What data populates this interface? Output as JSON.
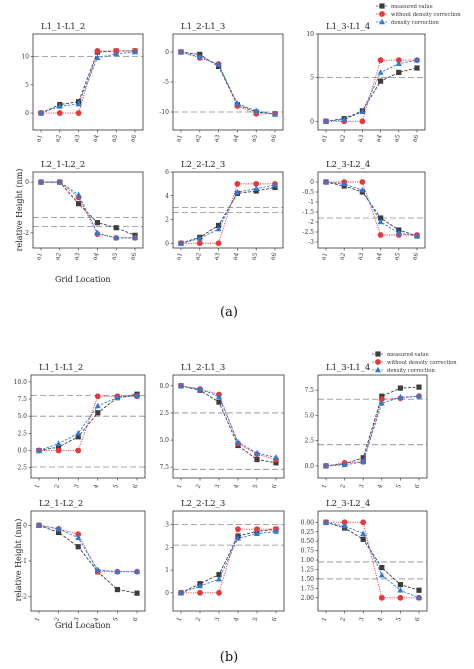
{
  "series_names": [
    "measured value",
    "without density correction",
    "density correction"
  ],
  "colors": {
    "measured": "#3d3d3d",
    "without": "#e8383d",
    "correction": "#2e7bd6",
    "reference": "#8a8a8a"
  },
  "markers": {
    "measured": "square",
    "without": "circle",
    "correction": "triangle"
  },
  "subfigure_labels": [
    "(a)",
    "(b)"
  ],
  "chart_data": [
    {
      "subfigure": "(a)",
      "type": "line",
      "ylabel": "relative Height (nm)",
      "xlabel": "Grid Location",
      "xticklabels": [
        "a1",
        "a2",
        "a3",
        "a4",
        "a5",
        "a6"
      ],
      "legend_placement": "top-right",
      "panels": [
        {
          "title": "L1_1-L1_2",
          "ylim": [
            -3,
            14
          ],
          "yticks": [
            0,
            5,
            10
          ],
          "ref_lines": [
            10
          ],
          "series": [
            {
              "name": "measured value",
              "values": [
                0,
                1.5,
                2,
                10.8,
                11,
                11
              ]
            },
            {
              "name": "without density correction",
              "values": [
                0,
                0,
                0,
                11,
                11,
                11
              ]
            },
            {
              "name": "density correction",
              "values": [
                0,
                1.2,
                1.6,
                9.8,
                10.5,
                10.8
              ]
            }
          ]
        },
        {
          "title": "L1_2-L1_3",
          "ylim": [
            -13,
            3
          ],
          "yticks": [
            0,
            -5,
            -10
          ],
          "ref_lines": [
            -10
          ],
          "series": [
            {
              "name": "measured value",
              "values": [
                0,
                -0.4,
                -2.4,
                -8.8,
                -10,
                -10.3
              ]
            },
            {
              "name": "without density correction",
              "values": [
                0,
                -1,
                -2,
                -9,
                -10.3,
                -10.3
              ]
            },
            {
              "name": "density correction",
              "values": [
                0,
                -0.8,
                -2.1,
                -8.6,
                -9.8,
                -10.4
              ]
            }
          ]
        },
        {
          "title": "L1_3-L1_4",
          "ylim": [
            -1,
            10
          ],
          "yticks": [
            0,
            5,
            10
          ],
          "ref_lines": [
            5
          ],
          "series": [
            {
              "name": "measured value",
              "values": [
                0,
                0.3,
                1.2,
                4.6,
                5.6,
                6.1
              ]
            },
            {
              "name": "without density correction",
              "values": [
                0,
                0,
                0,
                7,
                7,
                7
              ]
            },
            {
              "name": "density correction",
              "values": [
                0,
                0.2,
                1.1,
                5.6,
                6.6,
                7
              ]
            }
          ]
        },
        {
          "title": "L2_1-L2_2",
          "ylim": [
            -2.6,
            0.4
          ],
          "yticks": [
            0,
            -2
          ],
          "ref_lines": [
            -1.4,
            -1.75
          ],
          "series": [
            {
              "name": "measured value",
              "values": [
                0,
                0,
                -0.85,
                -1.6,
                -1.8,
                -2.1
              ]
            },
            {
              "name": "without density correction",
              "values": [
                0,
                0,
                -0.6,
                -2.05,
                -2.2,
                -2.2
              ]
            },
            {
              "name": "density correction",
              "values": [
                0,
                0,
                -0.5,
                -2,
                -2.2,
                -2.2
              ]
            }
          ]
        },
        {
          "title": "L2_2-L2_3",
          "ylim": [
            -0.4,
            6
          ],
          "yticks": [
            0,
            2,
            4,
            6
          ],
          "ref_lines": [
            2.6,
            3
          ],
          "series": [
            {
              "name": "measured value",
              "values": [
                0,
                0.5,
                1.5,
                4.2,
                4.4,
                4.7
              ]
            },
            {
              "name": "without density correction",
              "values": [
                0,
                0,
                0,
                5,
                5,
                5
              ]
            },
            {
              "name": "density correction",
              "values": [
                0,
                0.4,
                1.2,
                4.3,
                4.6,
                4.9
              ]
            }
          ]
        },
        {
          "title": "L2_3-L2_4",
          "ylim": [
            -3.3,
            0.5
          ],
          "yticks": [
            0,
            -0.5,
            -1,
            -1.5,
            -2,
            -2.5,
            -3
          ],
          "ref_lines": [
            -1.8
          ],
          "series": [
            {
              "name": "measured value",
              "values": [
                0,
                -0.2,
                -0.5,
                -1.8,
                -2.4,
                -2.7
              ]
            },
            {
              "name": "without density correction",
              "values": [
                0,
                0,
                0,
                -2.65,
                -2.65,
                -2.65
              ]
            },
            {
              "name": "density correction",
              "values": [
                0,
                -0.1,
                -0.4,
                -2,
                -2.55,
                -2.7
              ]
            }
          ]
        }
      ]
    },
    {
      "subfigure": "(b)",
      "type": "line",
      "ylabel": "relative Height (nm)",
      "xlabel": "Grid Location",
      "xticklabels": [
        "1",
        "2",
        "3",
        "4",
        "5",
        "6"
      ],
      "legend_placement": "top-right",
      "panels": [
        {
          "title": "L1_1-L1_2",
          "ylim": [
            -4,
            11
          ],
          "yticklabels": [
            "10.0",
            "7.5",
            "5.0",
            "2.5",
            "0.0",
            "2.5"
          ],
          "yticks": [
            10,
            7.5,
            5,
            2.5,
            0,
            -2.5
          ],
          "ref_lines": [
            8,
            5,
            -2.4
          ],
          "series": [
            {
              "name": "measured value",
              "values": [
                0,
                0.5,
                2,
                5.5,
                7.7,
                8.2
              ]
            },
            {
              "name": "without density correction",
              "values": [
                0,
                0,
                0,
                7.9,
                7.9,
                7.9
              ]
            },
            {
              "name": "density correction",
              "values": [
                0,
                1,
                2.5,
                6.5,
                7.7,
                8
              ]
            }
          ]
        },
        {
          "title": "L1_2-L1_3",
          "ylim": [
            -8.5,
            1
          ],
          "yticklabels": [
            "0.0",
            "2.5",
            "5.0",
            "7.5"
          ],
          "yticks": [
            0,
            -2.5,
            -5,
            -7.5
          ],
          "ref_lines": [
            -2.5,
            -7.7
          ],
          "series": [
            {
              "name": "measured value",
              "values": [
                0,
                -0.4,
                -1.5,
                -5.5,
                -6.8,
                -7.1
              ]
            },
            {
              "name": "without density correction",
              "values": [
                0,
                -0.3,
                -0.8,
                -5.3,
                -6.3,
                -6.8
              ]
            },
            {
              "name": "density correction",
              "values": [
                0,
                -0.3,
                -1,
                -5.2,
                -6.2,
                -6.6
              ]
            }
          ]
        },
        {
          "title": "L1_3-L1_4",
          "ylim": [
            -1.2,
            9
          ],
          "yticklabels": [
            "7.5",
            "5.0",
            "2.5",
            "0.0"
          ],
          "yticks": [
            7.5,
            5,
            2.5,
            0
          ],
          "ref_lines": [
            6.6,
            2.1
          ],
          "series": [
            {
              "name": "measured value",
              "values": [
                0,
                0.2,
                0.8,
                6.9,
                7.7,
                7.8
              ]
            },
            {
              "name": "without density correction",
              "values": [
                0,
                0.3,
                0.4,
                6.6,
                6.7,
                6.9
              ]
            },
            {
              "name": "density correction",
              "values": [
                0,
                0.1,
                0.4,
                6.2,
                6.8,
                6.9
              ]
            }
          ]
        },
        {
          "title": "L2_1-L2_2",
          "ylim": [
            -2.4,
            0.4
          ],
          "yticks": [
            0,
            -1,
            -2
          ],
          "ref_lines": [],
          "series": [
            {
              "name": "measured value",
              "values": [
                0,
                -0.2,
                -0.6,
                -1.3,
                -1.8,
                -1.9
              ]
            },
            {
              "name": "without density correction",
              "values": [
                0,
                -0.1,
                -0.25,
                -1.3,
                -1.3,
                -1.3
              ]
            },
            {
              "name": "density correction",
              "values": [
                0,
                -0.1,
                -0.35,
                -1.25,
                -1.3,
                -1.3
              ]
            }
          ]
        },
        {
          "title": "L2_2-L2_3",
          "ylim": [
            -0.8,
            3.6
          ],
          "yticks": [
            0,
            1,
            2,
            3
          ],
          "ref_lines": [
            3,
            2.1
          ],
          "series": [
            {
              "name": "measured value",
              "values": [
                0,
                0.4,
                0.8,
                2.5,
                2.7,
                2.8
              ]
            },
            {
              "name": "without density correction",
              "values": [
                0,
                0,
                0,
                2.8,
                2.8,
                2.8
              ]
            },
            {
              "name": "density correction",
              "values": [
                0,
                0.3,
                0.6,
                2.4,
                2.6,
                2.7
              ]
            }
          ]
        },
        {
          "title": "L2_3-L2_4",
          "ylim": [
            -2.35,
            0.3
          ],
          "yticklabels": [
            "0.00",
            "0.25",
            "0.50",
            "0.75",
            "1.00",
            "1.25",
            "1.50",
            "1.75",
            "2.00"
          ],
          "yticks": [
            0,
            -0.25,
            -0.5,
            -0.75,
            -1,
            -1.25,
            -1.5,
            -1.75,
            -2
          ],
          "ref_lines": [
            -1.05,
            -1.5
          ],
          "series": [
            {
              "name": "measured value",
              "values": [
                0,
                -0.15,
                -0.45,
                -1.2,
                -1.65,
                -1.8
              ]
            },
            {
              "name": "without density correction",
              "values": [
                0,
                0,
                0,
                -2,
                -2,
                -2
              ]
            },
            {
              "name": "density correction",
              "values": [
                0,
                -0.1,
                -0.3,
                -1.4,
                -1.8,
                -2
              ]
            }
          ]
        }
      ]
    }
  ]
}
